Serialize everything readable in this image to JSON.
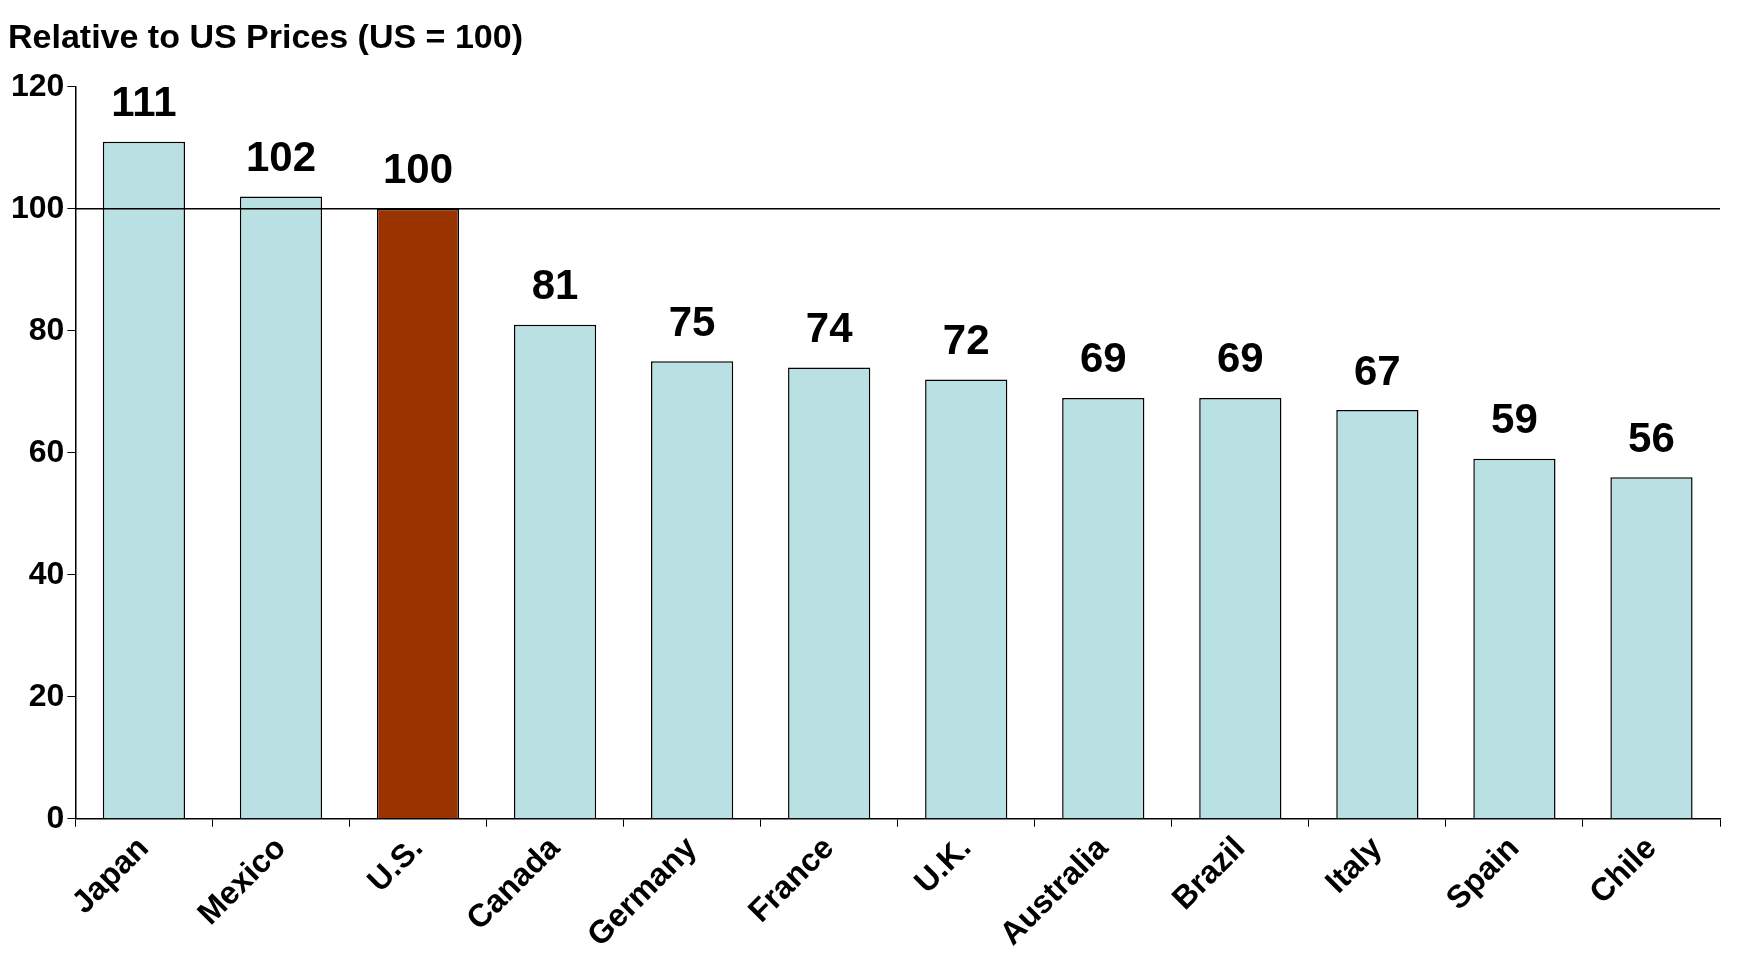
{
  "chart_data": {
    "type": "bar",
    "title": "Relative to US Prices (US = 100)",
    "categories": [
      "Japan",
      "Mexico",
      "U.S.",
      "Canada",
      "Germany",
      "France",
      "U.K.",
      "Australia",
      "Brazil",
      "Italy",
      "Spain",
      "Chile"
    ],
    "values": [
      111,
      102,
      100,
      81,
      75,
      74,
      72,
      69,
      69,
      67,
      59,
      56
    ],
    "colors": [
      "#b9e0e3",
      "#b9e0e3",
      "#993300",
      "#b9e0e3",
      "#b9e0e3",
      "#b9e0e3",
      "#b9e0e3",
      "#b9e0e3",
      "#b9e0e3",
      "#b9e0e3",
      "#b9e0e3",
      "#b9e0e3"
    ],
    "ylim": [
      0,
      120
    ],
    "yticks": [
      0,
      20,
      40,
      60,
      80,
      100,
      120
    ],
    "ref_lines": [
      {
        "axis": "y",
        "value": 100,
        "color": "#000000"
      }
    ],
    "data_labels": true,
    "grid": false,
    "legend": false
  }
}
